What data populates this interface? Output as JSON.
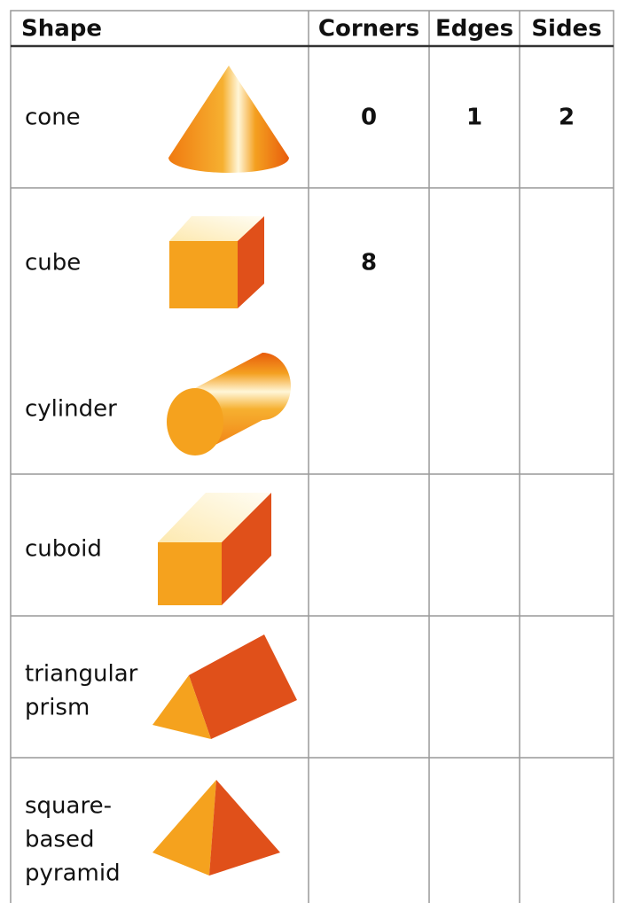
{
  "table": {
    "header": [
      "Shape",
      "Corners",
      "Edges",
      "Sides"
    ],
    "rows": [
      {
        "shape": [
          "cone"
        ],
        "corners": 0,
        "edges": 1,
        "sides": 2
      },
      {
        "shape": [
          "cube"
        ],
        "corners": 8
      },
      {
        "shape": [
          "cylinder"
        ]
      },
      {
        "shape": [
          "cuboid"
        ]
      },
      {
        "shape": [
          "triangular",
          "prism"
        ]
      },
      {
        "shape": [
          "square-",
          "based",
          "pyramid"
        ]
      }
    ]
  }
}
